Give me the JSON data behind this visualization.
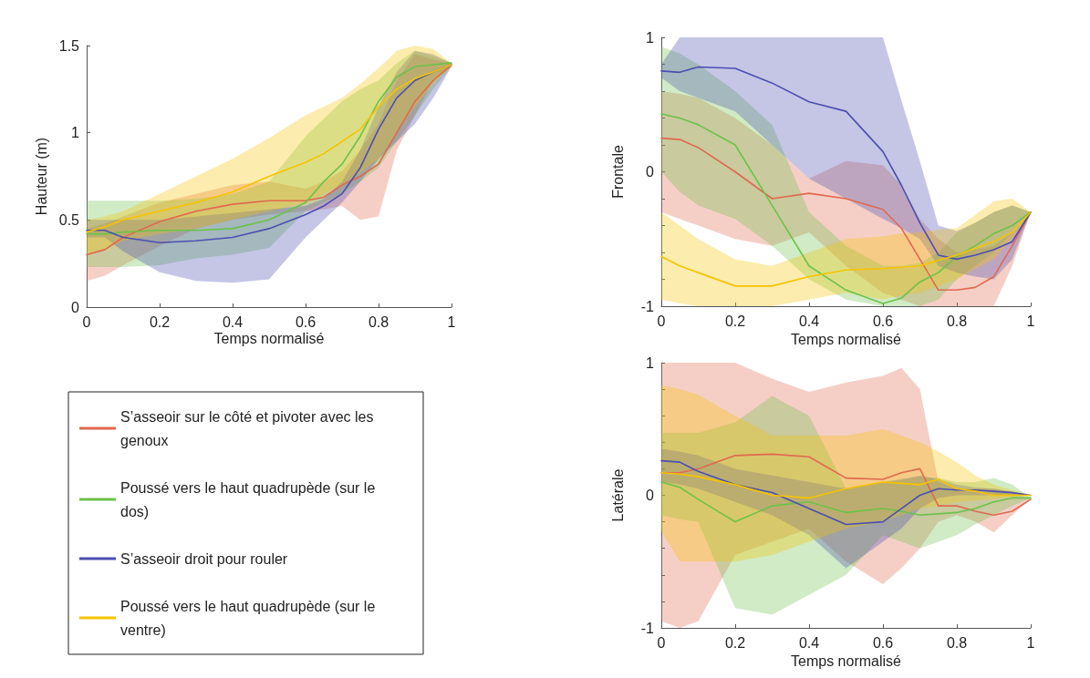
{
  "chart_data": [
    {
      "type": "line",
      "xlabel": "Temps normalisé",
      "ylabel": "Hauteur (m)",
      "xlim": [
        0,
        1
      ],
      "xticks": [
        0,
        0.2,
        0.4,
        0.6,
        0.8,
        1
      ],
      "ylim": [
        0,
        1.5
      ],
      "yticks": [
        0,
        0.5,
        1,
        1.5
      ],
      "grid": false,
      "marker": "none",
      "line_style": "solid",
      "legend": "bottom",
      "x": [
        0,
        0.05,
        0.1,
        0.2,
        0.3,
        0.4,
        0.5,
        0.6,
        0.65,
        0.7,
        0.75,
        0.8,
        0.85,
        0.9,
        0.95,
        1
      ],
      "series": [
        {
          "name": "S’asseoir sur le côté et pivoter avec les genoux",
          "color": "#e0694f",
          "values": [
            0.3,
            0.33,
            0.4,
            0.49,
            0.55,
            0.59,
            0.61,
            0.61,
            0.63,
            0.7,
            0.75,
            0.82,
            1.0,
            1.18,
            1.3,
            1.39
          ],
          "lower": [
            0.15,
            0.18,
            0.24,
            0.35,
            0.45,
            0.5,
            0.53,
            0.55,
            0.56,
            0.58,
            0.5,
            0.52,
            0.9,
            1.1,
            1.3,
            1.38
          ],
          "upper": [
            0.45,
            0.48,
            0.52,
            0.6,
            0.65,
            0.7,
            0.72,
            0.68,
            0.72,
            0.78,
            0.9,
            1.05,
            1.3,
            1.45,
            1.42,
            1.4
          ]
        },
        {
          "name": "Poussé vers le haut quadrupède (sur le dos)",
          "color": "#6cc24a",
          "values": [
            0.42,
            0.42,
            0.43,
            0.44,
            0.44,
            0.45,
            0.5,
            0.6,
            0.72,
            0.82,
            0.98,
            1.18,
            1.32,
            1.38,
            1.39,
            1.4
          ],
          "lower": [
            0.23,
            0.23,
            0.23,
            0.24,
            0.28,
            0.3,
            0.34,
            0.55,
            0.6,
            0.65,
            0.72,
            0.8,
            0.95,
            1.1,
            1.25,
            1.38
          ],
          "upper": [
            0.61,
            0.61,
            0.61,
            0.61,
            0.62,
            0.65,
            0.72,
            0.98,
            1.08,
            1.18,
            1.25,
            1.3,
            1.4,
            1.47,
            1.44,
            1.4
          ]
        },
        {
          "name": "S’asseoir droit pour rouler",
          "color": "#4b4fb0",
          "values": [
            0.44,
            0.44,
            0.4,
            0.37,
            0.38,
            0.4,
            0.45,
            0.53,
            0.58,
            0.65,
            0.8,
            1.02,
            1.2,
            1.3,
            1.35,
            1.39
          ],
          "lower": [
            0.4,
            0.4,
            0.32,
            0.2,
            0.15,
            0.14,
            0.16,
            0.4,
            0.5,
            0.6,
            0.72,
            0.85,
            0.95,
            1.05,
            1.2,
            1.38
          ],
          "upper": [
            0.5,
            0.5,
            0.5,
            0.5,
            0.52,
            0.54,
            0.56,
            0.58,
            0.62,
            0.72,
            0.9,
            1.15,
            1.35,
            1.47,
            1.45,
            1.4
          ]
        },
        {
          "name": "Poussé vers le haut quadrupède (sur le ventre)",
          "color": "#f5c400",
          "values": [
            0.43,
            0.46,
            0.5,
            0.55,
            0.6,
            0.66,
            0.75,
            0.83,
            0.88,
            0.95,
            1.02,
            1.15,
            1.25,
            1.31,
            1.35,
            1.39
          ],
          "lower": [
            0.3,
            0.33,
            0.38,
            0.42,
            0.45,
            0.5,
            0.55,
            0.6,
            0.65,
            0.7,
            0.77,
            0.85,
            1.0,
            1.15,
            1.28,
            1.38
          ],
          "upper": [
            0.5,
            0.52,
            0.55,
            0.65,
            0.75,
            0.85,
            0.97,
            1.1,
            1.15,
            1.2,
            1.28,
            1.37,
            1.47,
            1.5,
            1.48,
            1.4
          ]
        }
      ]
    },
    {
      "type": "line",
      "xlabel": "Temps normalisé",
      "ylabel": "Frontale",
      "xlim": [
        0,
        1
      ],
      "xticks": [
        0,
        0.2,
        0.4,
        0.6,
        0.8,
        1
      ],
      "ylim": [
        -1,
        1
      ],
      "yticks": [
        -1,
        {
          "value": -0.8,
          "label": null
        },
        {
          "value": -0.6,
          "label": null
        },
        {
          "value": -0.4,
          "label": null
        },
        {
          "value": -0.2,
          "label": null
        },
        0,
        {
          "value": 0.2,
          "label": null
        },
        {
          "value": 0.4,
          "label": null
        },
        {
          "value": 0.6,
          "label": null
        },
        {
          "value": 0.8,
          "label": null
        },
        1
      ],
      "grid": false,
      "marker": "none",
      "line_style": "solid",
      "x": [
        0,
        0.05,
        0.1,
        0.2,
        0.3,
        0.4,
        0.5,
        0.6,
        0.65,
        0.7,
        0.75,
        0.8,
        0.85,
        0.9,
        0.95,
        1
      ],
      "series": [
        {
          "color": "#e0694f",
          "values": [
            0.25,
            0.24,
            0.18,
            0.0,
            -0.2,
            -0.16,
            -0.2,
            -0.28,
            -0.42,
            -0.65,
            -0.88,
            -0.88,
            -0.86,
            -0.78,
            -0.55,
            -0.3
          ],
          "lower": [
            -0.3,
            -0.35,
            -0.4,
            -0.5,
            -0.55,
            -0.45,
            -0.7,
            -0.9,
            -0.95,
            -1,
            -1,
            -1,
            -1,
            -1,
            -0.7,
            -0.3
          ],
          "upper": [
            0.6,
            0.58,
            0.55,
            0.4,
            0.2,
            -0.05,
            0.08,
            0.05,
            -0.1,
            -0.35,
            -0.5,
            -0.6,
            -0.58,
            -0.55,
            -0.45,
            -0.3
          ]
        },
        {
          "color": "#6cc24a",
          "values": [
            0.43,
            0.4,
            0.35,
            0.2,
            -0.25,
            -0.7,
            -0.88,
            -0.98,
            -0.94,
            -0.82,
            -0.75,
            -0.63,
            -0.55,
            -0.46,
            -0.4,
            -0.3
          ],
          "lower": [
            0,
            -0.15,
            -0.25,
            -0.35,
            -0.55,
            -0.8,
            -0.95,
            -1,
            -1,
            -1,
            -0.95,
            -0.8,
            -0.7,
            -0.6,
            -0.45,
            -0.3
          ],
          "upper": [
            0.93,
            0.88,
            0.8,
            0.6,
            0.35,
            -0.3,
            -0.55,
            -0.7,
            -0.7,
            -0.68,
            -0.6,
            -0.45,
            -0.38,
            -0.3,
            -0.25,
            -0.3
          ]
        },
        {
          "color": "#4b4fb0",
          "values": [
            0.75,
            0.74,
            0.78,
            0.77,
            0.66,
            0.52,
            0.45,
            0.15,
            -0.1,
            -0.38,
            -0.62,
            -0.65,
            -0.62,
            -0.58,
            -0.52,
            -0.3
          ],
          "lower": [
            0.7,
            0.6,
            0.55,
            0.45,
            0.2,
            -0.05,
            -0.2,
            -0.35,
            -0.42,
            -0.5,
            -0.7,
            -0.75,
            -0.78,
            -0.8,
            -0.65,
            -0.3
          ],
          "upper": [
            0.8,
            1,
            1,
            1,
            1,
            1,
            1,
            1,
            0.53,
            0.08,
            -0.4,
            -0.44,
            -0.38,
            -0.3,
            -0.25,
            -0.3
          ]
        },
        {
          "color": "#f5c400",
          "values": [
            -0.63,
            -0.7,
            -0.75,
            -0.85,
            -0.85,
            -0.78,
            -0.73,
            -0.72,
            -0.71,
            -0.7,
            -0.66,
            -0.62,
            -0.57,
            -0.52,
            -0.45,
            -0.3
          ],
          "lower": [
            -0.95,
            -0.98,
            -1,
            -1,
            -1,
            -0.95,
            -0.9,
            -0.95,
            -0.92,
            -0.9,
            -0.85,
            -0.8,
            -0.72,
            -0.65,
            -0.5,
            -0.3
          ],
          "upper": [
            -0.3,
            -0.4,
            -0.5,
            -0.65,
            -0.7,
            -0.6,
            -0.5,
            -0.48,
            -0.46,
            -0.45,
            -0.43,
            -0.42,
            -0.32,
            -0.22,
            -0.2,
            -0.3
          ]
        }
      ]
    },
    {
      "type": "line",
      "xlabel": "Temps normalisé",
      "ylabel": "Latérale",
      "xlim": [
        0,
        1
      ],
      "xticks": [
        0,
        0.2,
        0.4,
        0.6,
        0.8,
        1
      ],
      "ylim": [
        -1,
        1
      ],
      "yticks": [
        -1,
        {
          "value": -0.8,
          "label": null
        },
        {
          "value": -0.6,
          "label": null
        },
        {
          "value": -0.4,
          "label": null
        },
        {
          "value": -0.2,
          "label": null
        },
        0,
        {
          "value": 0.2,
          "label": null
        },
        {
          "value": 0.4,
          "label": null
        },
        {
          "value": 0.6,
          "label": null
        },
        {
          "value": 0.8,
          "label": null
        },
        1
      ],
      "grid": false,
      "marker": "none",
      "line_style": "solid",
      "x": [
        0,
        0.05,
        0.1,
        0.2,
        0.3,
        0.4,
        0.5,
        0.6,
        0.65,
        0.7,
        0.75,
        0.8,
        0.85,
        0.9,
        0.95,
        1
      ],
      "series": [
        {
          "color": "#e0694f",
          "values": [
            0.17,
            0.17,
            0.2,
            0.3,
            0.31,
            0.29,
            0.13,
            0.12,
            0.17,
            0.2,
            -0.08,
            -0.08,
            -0.12,
            -0.15,
            -0.12,
            -0.03
          ],
          "lower": [
            -0.95,
            -1,
            -0.95,
            -0.45,
            -0.35,
            -0.25,
            -0.5,
            -0.67,
            -0.55,
            -0.4,
            -0.2,
            -0.15,
            -0.2,
            -0.28,
            -0.15,
            -0.03
          ],
          "upper": [
            1,
            1,
            1,
            1,
            0.88,
            0.78,
            0.85,
            0.9,
            0.96,
            0.8,
            0.1,
            0.05,
            0.05,
            0.05,
            0.02,
            -0.03
          ]
        },
        {
          "color": "#6cc24a",
          "values": [
            0.1,
            0.06,
            -0.03,
            -0.2,
            -0.08,
            -0.05,
            -0.13,
            -0.1,
            -0.12,
            -0.15,
            -0.14,
            -0.13,
            -0.1,
            -0.05,
            -0.02,
            -0.02
          ],
          "lower": [
            -0.15,
            -0.18,
            -0.2,
            -0.85,
            -0.9,
            -0.75,
            -0.6,
            -0.3,
            -0.35,
            -0.4,
            -0.35,
            -0.3,
            -0.22,
            -0.15,
            -0.08,
            -0.02
          ],
          "upper": [
            0.47,
            0.47,
            0.47,
            0.55,
            0.75,
            0.6,
            0.05,
            0.1,
            0.12,
            0.14,
            0.13,
            0.1,
            0.1,
            0.13,
            0.08,
            -0.02
          ]
        },
        {
          "color": "#4b4fb0",
          "values": [
            0.26,
            0.25,
            0.18,
            0.08,
            0.02,
            -0.1,
            -0.22,
            -0.2,
            -0.1,
            0,
            0.05,
            0.04,
            0.04,
            0.03,
            0.02,
            0
          ],
          "lower": [
            0.1,
            0.08,
            0.05,
            -0.05,
            -0.15,
            -0.3,
            -0.55,
            -0.35,
            -0.25,
            -0.1,
            -0.02,
            0,
            0,
            0,
            0,
            0
          ],
          "upper": [
            0.35,
            0.33,
            0.3,
            0.2,
            0.15,
            0.1,
            0.05,
            0.1,
            0.12,
            0.15,
            0.12,
            0.08,
            0.06,
            0.05,
            0.03,
            0
          ]
        },
        {
          "color": "#f5c400",
          "values": [
            0.17,
            0.16,
            0.14,
            0.08,
            0,
            -0.02,
            0.05,
            0.1,
            0.09,
            0.08,
            0.12,
            0.05,
            0.03,
            0,
            0,
            0
          ],
          "lower": [
            -0.27,
            -0.5,
            -0.5,
            -0.5,
            -0.45,
            -0.35,
            -0.25,
            -0.2,
            -0.15,
            -0.1,
            -0.08,
            -0.05,
            -0.04,
            -0.03,
            -0.01,
            0
          ],
          "upper": [
            0.83,
            0.8,
            0.76,
            0.6,
            0.45,
            0.45,
            0.45,
            0.5,
            0.45,
            0.4,
            0.33,
            0.25,
            0.15,
            0.08,
            0.04,
            0
          ]
        }
      ]
    }
  ]
}
